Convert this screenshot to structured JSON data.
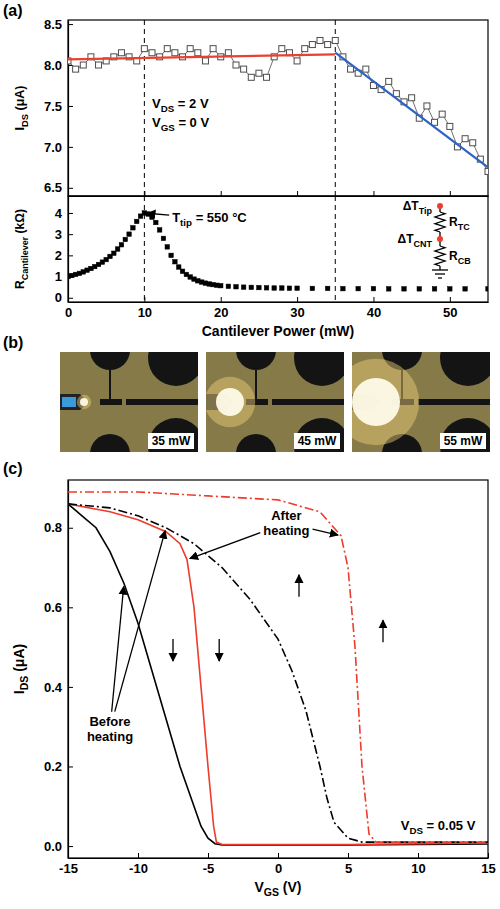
{
  "chart_data": [
    {
      "type": "scatter",
      "panel": "(a)",
      "y_label": "IDS (μA)",
      "xlim": [
        0,
        55
      ],
      "xticks": [
        0,
        10,
        20,
        30,
        40,
        50
      ],
      "ylim": [
        6.4,
        8.55
      ],
      "yticks": [
        6.5,
        {
          "value": 7,
          "label": "7.0"
        },
        7.5,
        {
          "value": 8,
          "label": "8.0"
        },
        8.5
      ],
      "tick_labels": "y",
      "vlines": [
        10,
        35
      ],
      "annotations": [
        {
          "text": "VDS = 2 V"
        },
        {
          "text": "VGS = 0 V"
        }
      ],
      "series": [
        {
          "color": "#4d4d4d",
          "marker": "square-open",
          "line_style": "solid",
          "x": [
            0,
            1,
            2,
            3,
            4,
            5,
            6,
            7,
            8,
            9,
            10,
            11,
            12,
            13,
            14,
            15,
            16,
            17,
            18,
            19,
            20,
            21,
            22,
            23,
            24,
            25,
            26,
            27,
            28,
            29,
            30,
            31,
            32,
            33,
            34,
            35,
            36,
            37,
            38,
            39,
            40,
            41,
            42,
            43,
            44,
            45,
            46,
            47,
            48,
            49,
            50,
            51,
            52,
            53,
            54,
            55
          ],
          "values": [
            8.05,
            7.95,
            8.0,
            8.1,
            8.0,
            8.05,
            8.1,
            8.15,
            8.1,
            8.05,
            8.2,
            8.15,
            8.1,
            8.2,
            8.15,
            8.1,
            8.2,
            8.15,
            8.05,
            8.2,
            8.1,
            8.15,
            8.0,
            7.95,
            7.85,
            7.9,
            7.85,
            8.1,
            8.2,
            8.15,
            8.05,
            8.2,
            8.25,
            8.3,
            8.25,
            8.3,
            8.1,
            7.95,
            7.9,
            7.95,
            7.75,
            7.7,
            7.8,
            7.65,
            7.55,
            7.6,
            7.35,
            7.5,
            7.3,
            7.4,
            7.25,
            7.0,
            7.1,
            7.05,
            6.85,
            6.7
          ]
        },
        {
          "type": "line",
          "color": "#e8412f",
          "line_style": "solid",
          "x": [
            0,
            35
          ],
          "values": [
            8.07,
            8.13
          ]
        },
        {
          "type": "line",
          "color": "#2c63c4",
          "line_style": "solid",
          "x": [
            35,
            55
          ],
          "values": [
            8.15,
            6.75
          ]
        }
      ]
    },
    {
      "type": "scatter",
      "x_label": "Cantilever Power (mW)",
      "y_label": "RCantilever (kΩ)",
      "xlim": [
        0,
        55
      ],
      "xticks": [
        0,
        10,
        20,
        30,
        40,
        50
      ],
      "ylim": [
        -0.2,
        4.8
      ],
      "yticks": [
        0,
        1,
        2,
        3,
        4
      ],
      "vlines": [
        10,
        35
      ],
      "annotations": [
        {
          "text": "Ttip = 550 °C",
          "points": [
            [
              10,
              4.0
            ]
          ]
        }
      ],
      "inset": {
        "nodes": [
          "ΔTTip",
          "ΔTCNT"
        ],
        "resistors": [
          "RTC",
          "RCB"
        ]
      },
      "series": [
        {
          "color": "#000000",
          "marker": "square",
          "x": [
            0,
            0.5,
            1,
            1.5,
            2,
            2.5,
            3,
            3.5,
            4,
            4.5,
            5,
            5.5,
            6,
            6.5,
            7,
            7.5,
            8,
            8.5,
            9,
            9.5,
            10,
            10.5,
            11,
            11.5,
            12,
            12.5,
            13,
            13.5,
            14,
            14.5,
            15,
            15.5,
            16,
            16.5,
            17,
            17.5,
            18,
            18.5,
            19,
            19.5,
            20,
            21,
            22,
            23,
            24,
            25,
            26,
            27,
            28,
            29,
            30,
            32,
            34,
            36,
            38,
            40,
            42,
            44,
            46,
            48,
            50,
            52,
            55
          ],
          "values": [
            1.0,
            1.05,
            1.1,
            1.15,
            1.22,
            1.3,
            1.38,
            1.47,
            1.57,
            1.68,
            1.8,
            1.95,
            2.1,
            2.3,
            2.5,
            2.75,
            3.0,
            3.3,
            3.6,
            3.85,
            4.0,
            3.95,
            3.8,
            3.55,
            3.2,
            2.8,
            2.4,
            2.0,
            1.7,
            1.45,
            1.25,
            1.1,
            0.98,
            0.88,
            0.8,
            0.74,
            0.69,
            0.65,
            0.62,
            0.59,
            0.57,
            0.54,
            0.52,
            0.5,
            0.49,
            0.48,
            0.47,
            0.46,
            0.46,
            0.45,
            0.45,
            0.44,
            0.44,
            0.43,
            0.43,
            0.43,
            0.42,
            0.42,
            0.42,
            0.42,
            0.42,
            0.42,
            0.42
          ]
        }
      ]
    },
    {
      "type": "image",
      "panel": "(b)",
      "labels": [
        "35 mW",
        "45 mW",
        "55 mW"
      ]
    },
    {
      "type": "line",
      "panel": "(c)",
      "x_label": "VGS (V)",
      "y_label": "IDS (μA)",
      "xlim": [
        -15,
        15
      ],
      "xticks": [
        -15,
        -10,
        -5,
        0,
        5,
        10,
        15
      ],
      "ylim": [
        -0.03,
        0.92
      ],
      "yticks": [
        {
          "value": 0,
          "label": "0.0"
        },
        0.2,
        0.4,
        0.6,
        0.8
      ],
      "annotations": [
        {
          "text": "Before heating",
          "points": [
            [
              -11,
              0.66
            ],
            [
              -8,
              0.8
            ]
          ]
        },
        {
          "text": "After heating",
          "points": [
            [
              -6.5,
              0.72
            ],
            [
              4.5,
              0.78
            ]
          ]
        },
        {
          "text": "VDS = 0.05 V"
        }
      ],
      "series": [
        {
          "color": "#000000",
          "line_style": "solid",
          "x": [
            -15,
            -14,
            -13,
            -12,
            -11,
            -10,
            -9,
            -8,
            -7,
            -6,
            -5.5,
            -5,
            -4.5,
            -4,
            -2,
            0,
            5,
            10,
            15
          ],
          "values": [
            0.86,
            0.83,
            0.8,
            0.74,
            0.66,
            0.56,
            0.44,
            0.32,
            0.2,
            0.1,
            0.05,
            0.02,
            0.006,
            0.003,
            0.003,
            0.003,
            0.003,
            0.004,
            0.005
          ]
        },
        {
          "color": "#ee3b2c",
          "line_style": "solid",
          "x": [
            -15,
            -12,
            -10,
            -8,
            -7,
            -6.5,
            -6,
            -5.5,
            -5,
            -4.6,
            -4.4,
            -4,
            0,
            5,
            10,
            15
          ],
          "values": [
            0.86,
            0.84,
            0.82,
            0.79,
            0.76,
            0.72,
            0.6,
            0.4,
            0.2,
            0.05,
            0.01,
            0.004,
            0.004,
            0.004,
            0.006,
            0.008
          ]
        },
        {
          "color": "#000000",
          "line_style": "dashdot",
          "x": [
            -15,
            -12,
            -10,
            -8,
            -6,
            -4,
            -2,
            0,
            1,
            2,
            3,
            3.5,
            4,
            5,
            6,
            10,
            15
          ],
          "values": [
            0.86,
            0.85,
            0.83,
            0.8,
            0.76,
            0.7,
            0.62,
            0.52,
            0.44,
            0.34,
            0.2,
            0.12,
            0.06,
            0.02,
            0.01,
            0.01,
            0.01
          ]
        },
        {
          "color": "#ee3b2c",
          "line_style": "dashdot",
          "x": [
            -15,
            -10,
            -5,
            0,
            3,
            4.5,
            5,
            5.5,
            6,
            6.5,
            7,
            10,
            15
          ],
          "values": [
            0.89,
            0.89,
            0.88,
            0.87,
            0.84,
            0.78,
            0.7,
            0.5,
            0.2,
            0.03,
            0.01,
            0.01,
            0.01
          ]
        }
      ]
    }
  ]
}
